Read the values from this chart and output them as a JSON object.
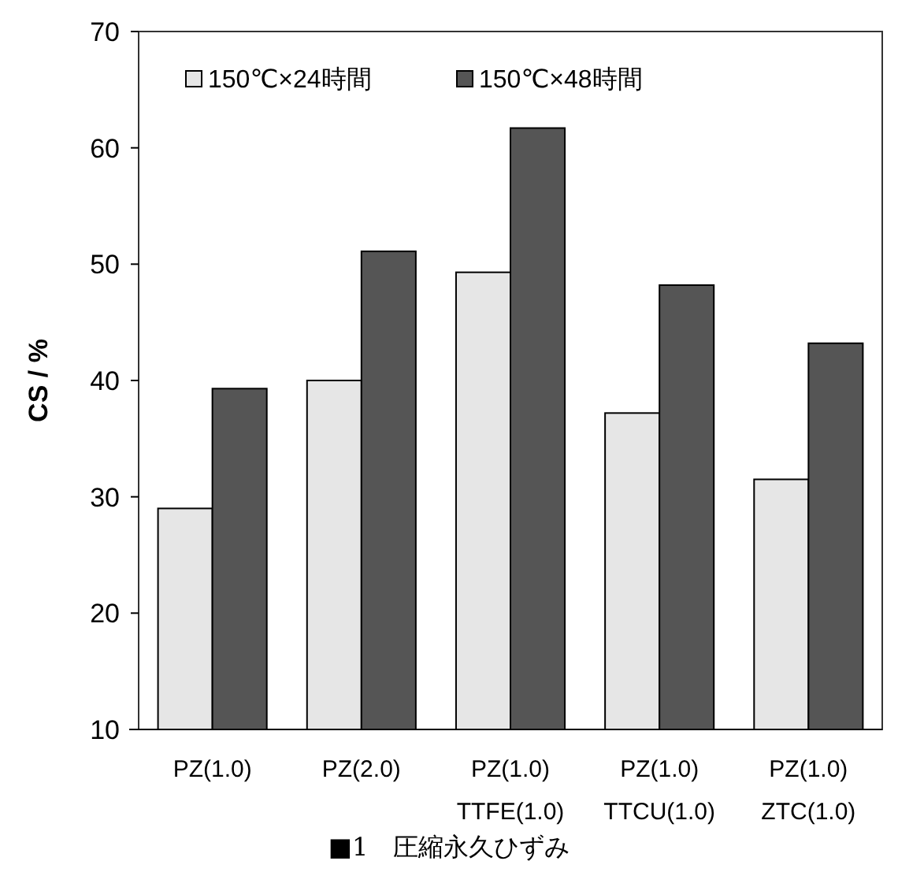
{
  "chart_data": {
    "type": "bar",
    "ylabel": "CS / %",
    "categories": [
      "PZ(1.0)",
      "PZ(2.0)",
      "PZ(1.0)\nTTFE(1.0)",
      "PZ(1.0)\nTTCU(1.0)",
      "PZ(1.0)\nZTC(1.0)"
    ],
    "series": [
      {
        "name": "150℃×24時間",
        "color": "#e6e6e6",
        "values": [
          29,
          40,
          49.3,
          37.2,
          31.5
        ]
      },
      {
        "name": "150℃×48時間",
        "color": "#555555",
        "values": [
          39.3,
          51.1,
          61.7,
          48.2,
          43.2
        ]
      }
    ],
    "ylim": [
      10,
      70
    ],
    "yticks": [
      10,
      20,
      30,
      40,
      50,
      60,
      70
    ],
    "grid": false,
    "legend": "top left",
    "annotations": [
      "■1　圧縮永久ひずみ"
    ]
  }
}
